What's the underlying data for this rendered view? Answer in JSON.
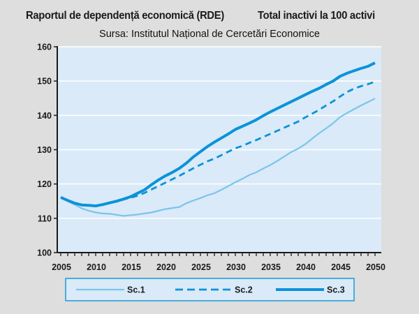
{
  "chart_data": {
    "type": "line",
    "title": "Raportul de dependență economică (RDE)",
    "title_right": "Total inactivi la  100 activi",
    "subtitle": "Sursa: Institutul Național de Cercetări Economice",
    "xlabel": "",
    "ylabel": "",
    "xlim": [
      2005,
      2050
    ],
    "ylim": [
      100,
      160
    ],
    "x_ticks": [
      2005,
      2010,
      2015,
      2020,
      2025,
      2030,
      2035,
      2040,
      2045,
      2050
    ],
    "y_ticks": [
      100,
      110,
      120,
      130,
      140,
      150,
      160
    ],
    "grid": "horizontal",
    "legend_position": "bottom",
    "colors": {
      "sc1": "#7cc4ec",
      "sc2": "#0b93d8",
      "sc3": "#0b93d8",
      "plot_bg": "#daeaf8",
      "page_bg": "#dedede",
      "legend_border": "#1a9ad6"
    },
    "x": [
      2005,
      2006,
      2007,
      2008,
      2009,
      2010,
      2011,
      2012,
      2013,
      2014,
      2015,
      2016,
      2017,
      2018,
      2019,
      2020,
      2021,
      2022,
      2023,
      2024,
      2025,
      2026,
      2027,
      2028,
      2029,
      2030,
      2031,
      2032,
      2033,
      2034,
      2035,
      2036,
      2037,
      2038,
      2039,
      2040,
      2041,
      2042,
      2043,
      2044,
      2045,
      2046,
      2047,
      2048,
      2049,
      2050
    ],
    "series": [
      {
        "name": "Sc.1",
        "style": "thin-solid",
        "values": [
          116.0,
          115.0,
          114.0,
          112.9,
          112.2,
          111.7,
          111.4,
          111.3,
          111.0,
          110.7,
          110.9,
          111.1,
          111.4,
          111.7,
          112.2,
          112.7,
          113.0,
          113.3,
          114.4,
          115.2,
          115.9,
          116.7,
          117.3,
          118.3,
          119.4,
          120.5,
          121.5,
          122.6,
          123.4,
          124.5,
          125.5,
          126.7,
          128.0,
          129.3,
          130.3,
          131.6,
          133.2,
          134.8,
          136.2,
          137.7,
          139.5,
          140.7,
          141.8,
          142.9,
          143.9,
          144.9
        ]
      },
      {
        "name": "Sc.2",
        "style": "dashed",
        "values": [
          116.1,
          115.2,
          114.4,
          113.9,
          113.8,
          113.6,
          114.0,
          114.5,
          115.0,
          115.5,
          116.0,
          116.6,
          117.4,
          118.4,
          119.4,
          120.4,
          121.4,
          122.4,
          123.5,
          124.6,
          125.6,
          126.6,
          127.4,
          128.4,
          129.4,
          130.4,
          131.1,
          132.0,
          132.8,
          133.7,
          134.6,
          135.5,
          136.4,
          137.3,
          138.2,
          139.4,
          140.5,
          141.6,
          142.9,
          144.1,
          145.5,
          146.8,
          147.8,
          148.5,
          149.1,
          149.8
        ]
      },
      {
        "name": "Sc.3",
        "style": "thick-solid",
        "values": [
          116.1,
          115.2,
          114.4,
          113.9,
          113.8,
          113.6,
          114.0,
          114.5,
          115.0,
          115.6,
          116.3,
          117.3,
          118.3,
          119.8,
          121.2,
          122.4,
          123.4,
          124.6,
          126.1,
          127.9,
          129.4,
          130.9,
          132.2,
          133.4,
          134.6,
          135.9,
          136.8,
          137.7,
          138.7,
          139.9,
          141.0,
          142.0,
          143.0,
          144.0,
          145.0,
          146.0,
          147.0,
          147.9,
          149.0,
          150.0,
          151.4,
          152.3,
          153.0,
          153.7,
          154.3,
          155.3
        ]
      }
    ]
  }
}
